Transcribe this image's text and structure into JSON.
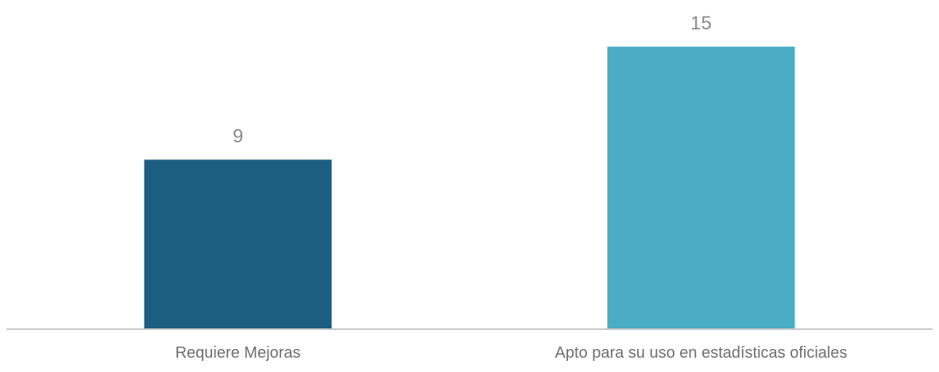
{
  "chart_data": {
    "type": "bar",
    "categories": [
      "Requiere Mejoras",
      "Apto para su uso en estadísticas oficiales"
    ],
    "values": [
      9,
      15
    ],
    "data_labels": [
      "9",
      "15"
    ],
    "colors": [
      "#1b5e80",
      "#4aacc5"
    ],
    "axis_color": "#c8c8c8",
    "title": "",
    "xlabel": "",
    "ylabel": "",
    "ylim": [
      0,
      16
    ],
    "grid": false,
    "legend": "none"
  }
}
